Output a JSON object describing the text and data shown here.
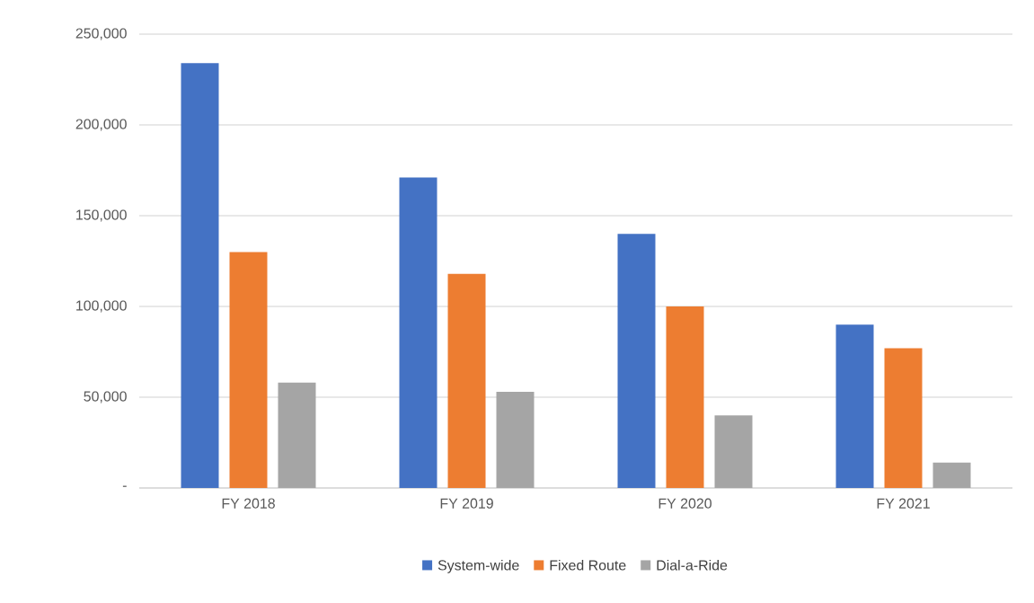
{
  "chart_data": {
    "type": "bar",
    "categories": [
      "FY 2018",
      "FY 2019",
      "FY 2020",
      "FY 2021"
    ],
    "series": [
      {
        "name": "System-wide",
        "color": "#4472c4",
        "values": [
          234000,
          171000,
          140000,
          90000
        ]
      },
      {
        "name": "Fixed Route",
        "color": "#ed7d31",
        "values": [
          130000,
          118000,
          100000,
          77000
        ]
      },
      {
        "name": "Dial-a-Ride",
        "color": "#a5a5a5",
        "values": [
          58000,
          53000,
          40000,
          14000
        ]
      }
    ],
    "ylim": [
      0,
      250000
    ],
    "yticks": [
      {
        "value": 0,
        "label": "-"
      },
      {
        "value": 50000,
        "label": "50,000"
      },
      {
        "value": 100000,
        "label": "100,000"
      },
      {
        "value": 150000,
        "label": "150,000"
      },
      {
        "value": 200000,
        "label": "200,000"
      },
      {
        "value": 250000,
        "label": "250,000"
      }
    ],
    "grid": "y",
    "legend": "bottom"
  }
}
